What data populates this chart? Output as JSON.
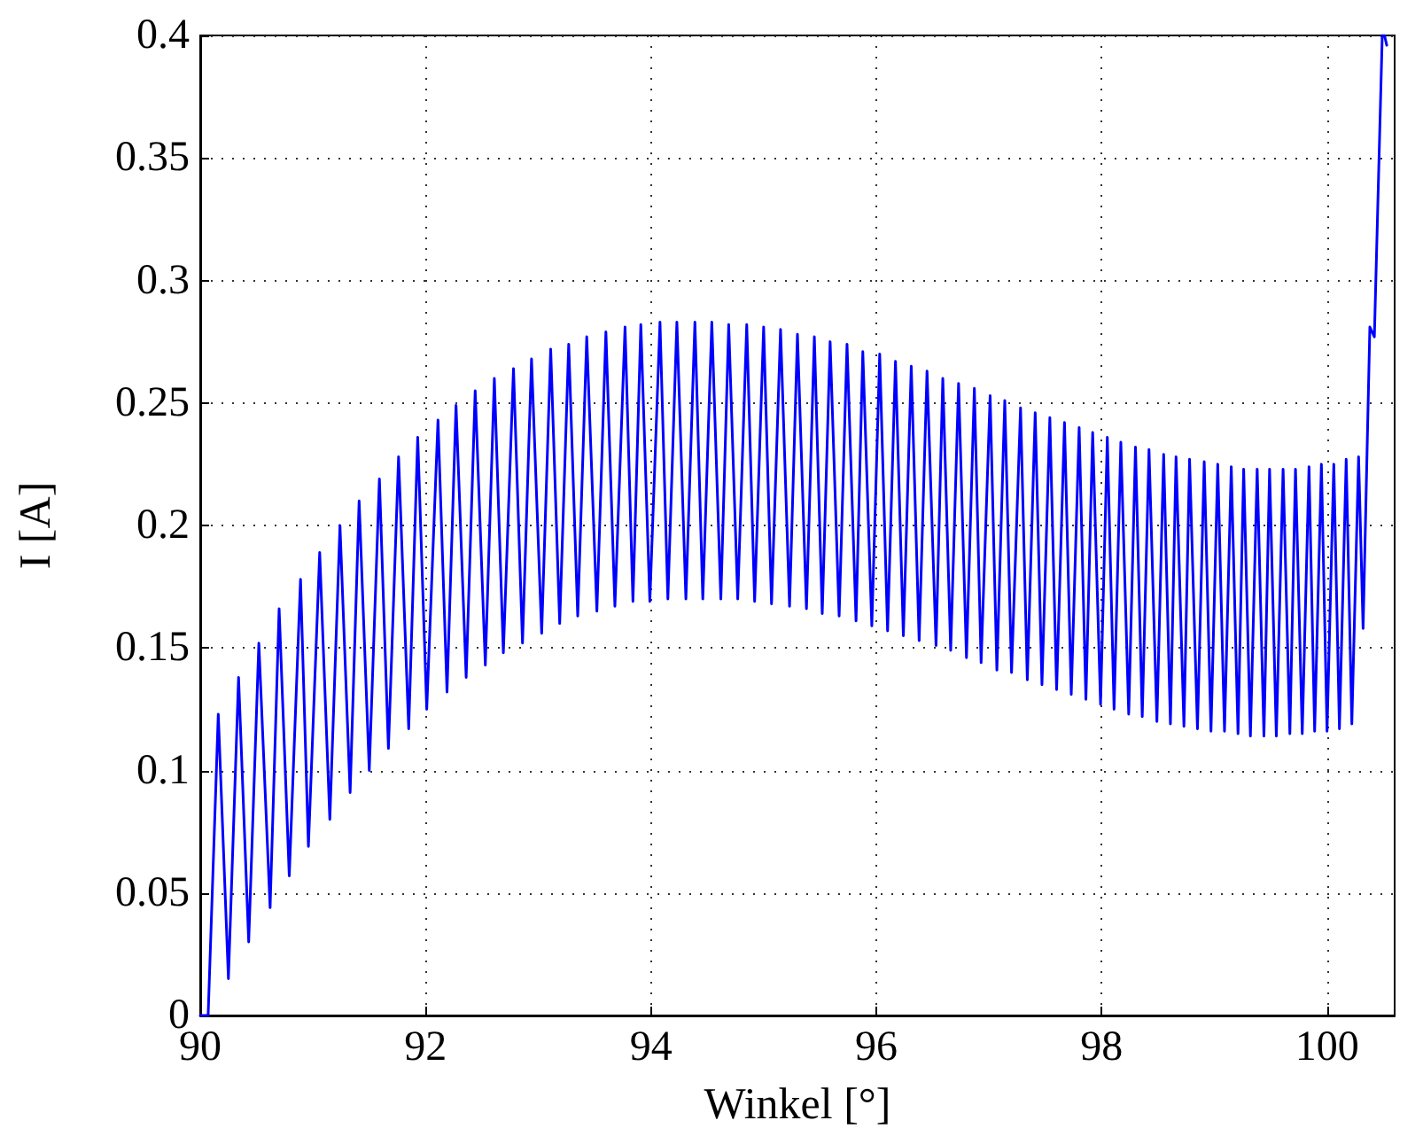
{
  "chart_data": {
    "type": "line",
    "xlabel": "Winkel [°]",
    "ylabel": "I [A]",
    "xlim": [
      90,
      100.6
    ],
    "xticks": [
      90,
      92,
      94,
      96,
      98,
      100
    ],
    "ylim": [
      0,
      0.4
    ],
    "yticks": [
      0,
      0.05,
      0.1,
      0.15,
      0.2,
      0.25,
      0.3,
      0.35,
      0.4
    ],
    "grid": true,
    "marker": "none",
    "line_style": "solid",
    "series": [
      {
        "color": "#0000ff",
        "x": [
          90,
          90.07,
          90.16,
          90.25,
          90.34,
          90.43,
          90.52,
          90.62,
          90.7,
          90.79,
          90.89,
          90.96,
          91.06,
          91.15,
          91.24,
          91.33,
          91.41,
          91.5,
          91.59,
          91.67,
          91.76,
          91.85,
          91.93,
          92.01,
          92.11,
          92.19,
          92.27,
          92.36,
          92.44,
          92.53,
          92.61,
          92.69,
          92.78,
          92.86,
          92.94,
          93.03,
          93.11,
          93.19,
          93.27,
          93.35,
          93.43,
          93.52,
          93.6,
          93.68,
          93.77,
          93.84,
          93.91,
          93.99,
          94.08,
          94.15,
          94.23,
          94.31,
          94.39,
          94.46,
          94.54,
          94.62,
          94.69,
          94.77,
          94.85,
          94.92,
          95.0,
          95.07,
          95.15,
          95.23,
          95.3,
          95.38,
          95.45,
          95.52,
          95.59,
          95.67,
          95.74,
          95.82,
          95.88,
          95.96,
          96.03,
          96.1,
          96.17,
          96.24,
          96.31,
          96.38,
          96.45,
          96.53,
          96.59,
          96.66,
          96.73,
          96.8,
          96.87,
          96.93,
          97.01,
          97.07,
          97.14,
          97.2,
          97.28,
          97.34,
          97.41,
          97.47,
          97.54,
          97.6,
          97.67,
          97.73,
          97.8,
          97.86,
          97.92,
          97.99,
          98.05,
          98.11,
          98.17,
          98.24,
          98.3,
          98.36,
          98.42,
          98.49,
          98.55,
          98.61,
          98.66,
          98.73,
          98.78,
          98.85,
          98.91,
          98.97,
          99.03,
          99.09,
          99.15,
          99.21,
          99.26,
          99.32,
          99.38,
          99.44,
          99.49,
          99.55,
          99.61,
          99.67,
          99.72,
          99.78,
          99.84,
          99.89,
          99.95,
          100.0,
          100.06,
          100.11,
          100.17,
          100.22,
          100.28,
          100.32,
          100.38,
          100.42,
          100.49,
          100.51,
          100.53
        ],
        "values": [
          0,
          0,
          0.123,
          0.015,
          0.138,
          0.03,
          0.152,
          0.044,
          0.166,
          0.057,
          0.178,
          0.069,
          0.189,
          0.08,
          0.2,
          0.091,
          0.21,
          0.1,
          0.219,
          0.109,
          0.228,
          0.117,
          0.236,
          0.125,
          0.243,
          0.132,
          0.249,
          0.138,
          0.255,
          0.143,
          0.26,
          0.148,
          0.264,
          0.152,
          0.268,
          0.156,
          0.272,
          0.16,
          0.274,
          0.163,
          0.277,
          0.165,
          0.279,
          0.167,
          0.281,
          0.169,
          0.282,
          0.169,
          0.283,
          0.17,
          0.283,
          0.17,
          0.283,
          0.17,
          0.283,
          0.17,
          0.282,
          0.17,
          0.282,
          0.169,
          0.281,
          0.168,
          0.28,
          0.167,
          0.278,
          0.166,
          0.277,
          0.164,
          0.275,
          0.163,
          0.274,
          0.161,
          0.271,
          0.159,
          0.27,
          0.157,
          0.267,
          0.155,
          0.265,
          0.153,
          0.263,
          0.151,
          0.26,
          0.149,
          0.258,
          0.146,
          0.256,
          0.144,
          0.253,
          0.141,
          0.251,
          0.14,
          0.248,
          0.137,
          0.246,
          0.135,
          0.244,
          0.133,
          0.242,
          0.131,
          0.24,
          0.129,
          0.238,
          0.127,
          0.236,
          0.125,
          0.234,
          0.123,
          0.232,
          0.122,
          0.231,
          0.12,
          0.229,
          0.119,
          0.228,
          0.118,
          0.227,
          0.117,
          0.226,
          0.116,
          0.225,
          0.116,
          0.224,
          0.115,
          0.223,
          0.114,
          0.223,
          0.114,
          0.223,
          0.114,
          0.223,
          0.115,
          0.223,
          0.115,
          0.224,
          0.116,
          0.225,
          0.116,
          0.225,
          0.117,
          0.227,
          0.119,
          0.228,
          0.158,
          0.281,
          0.277,
          0.4,
          0.4,
          0.396
        ]
      }
    ]
  }
}
